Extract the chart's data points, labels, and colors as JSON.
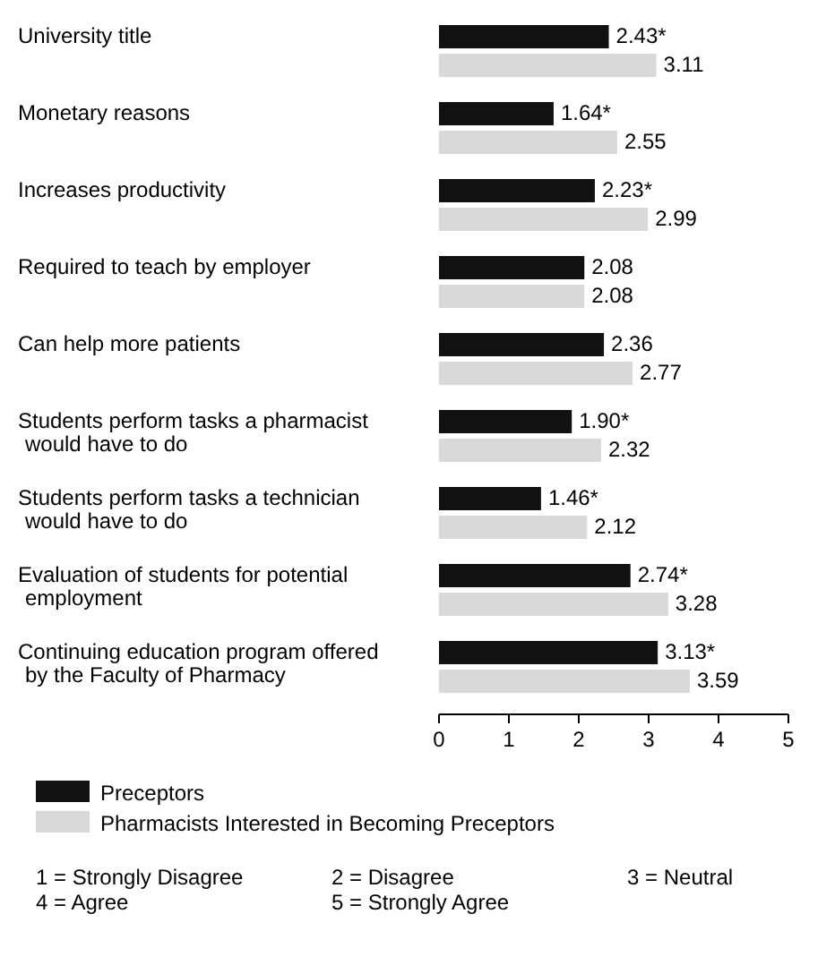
{
  "chart_data": {
    "type": "bar",
    "orientation": "horizontal",
    "categories": [
      "University title",
      "Monetary reasons",
      "Increases productivity",
      "Required to teach by employer",
      "Can help more patients",
      "Students perform tasks a pharmacist would have to do",
      "Students perform tasks a technician would have to do",
      "Evaluation of students for potential employment",
      "Continuing education program offered by the Faculty of Pharmacy"
    ],
    "series": [
      {
        "name": "Preceptors",
        "color": "#111111",
        "values": [
          2.43,
          1.64,
          2.23,
          2.08,
          2.36,
          1.9,
          1.46,
          2.74,
          3.13
        ],
        "value_labels": [
          "2.43*",
          "1.64*",
          "2.23*",
          "2.08",
          "2.36",
          "1.90*",
          "1.46*",
          "2.74*",
          "3.13*"
        ]
      },
      {
        "name": "Pharmacists Interested in Becoming Preceptors",
        "color": "#d9d9d9",
        "values": [
          3.11,
          2.55,
          2.99,
          2.08,
          2.77,
          2.32,
          2.12,
          3.28,
          3.59
        ],
        "value_labels": [
          "3.11",
          "2.55",
          "2.99",
          "2.08",
          "2.77",
          "2.32",
          "2.12",
          "3.28",
          "3.59"
        ]
      }
    ],
    "xlim": [
      0,
      5
    ],
    "xticks": [
      0,
      1,
      2,
      3,
      4,
      5
    ],
    "legend": "bottom",
    "annotations": [
      "1 = Strongly Disagree",
      "2 = Disagree",
      "3 = Neutral",
      "4 = Agree",
      "5 = Strongly Agree"
    ]
  }
}
